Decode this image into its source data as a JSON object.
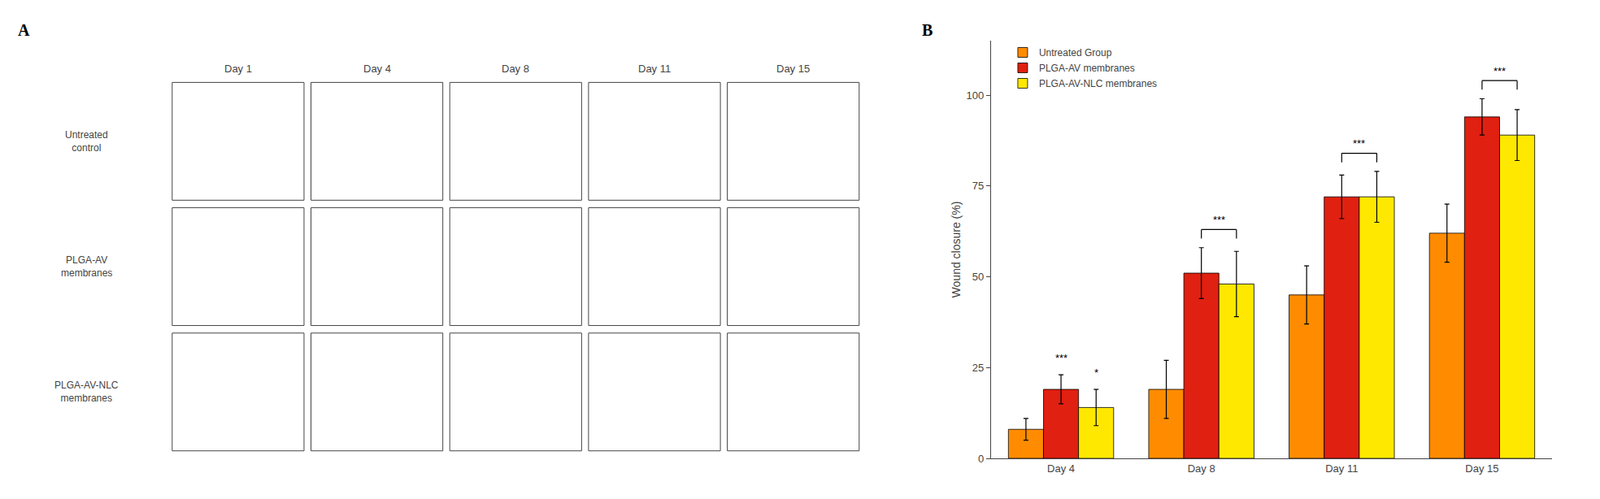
{
  "chart_data": [
    {
      "type": "photogrid",
      "title": "A",
      "categories": [
        "Day 1",
        "Day 4",
        "Day 8",
        "Day 11",
        "Day 15"
      ],
      "rows": [
        "Untreated\ncontrol",
        "PLGA-AV\nmembranes",
        "PLGA-AV-NLC\nmembranes"
      ]
    },
    {
      "type": "bar",
      "title": "B",
      "categories": [
        "Day 4",
        "Day 8",
        "Day 11",
        "Day 15"
      ],
      "series": [
        {
          "name": "Untreated Group",
          "color": "#FF8C00",
          "values": [
            8,
            19,
            45,
            62
          ],
          "errors": [
            3,
            8,
            8,
            8
          ]
        },
        {
          "name": "PLGA-AV membranes",
          "color": "#E02010",
          "values": [
            19,
            51,
            72,
            94
          ],
          "errors": [
            4,
            7,
            6,
            5
          ]
        },
        {
          "name": "PLGA-AV-NLC membranes",
          "color": "#FFE800",
          "values": [
            14,
            48,
            72,
            89
          ],
          "errors": [
            5,
            9,
            7,
            7
          ]
        }
      ],
      "ylabel": "Wound closure (%)",
      "ylim": [
        0,
        115
      ],
      "yticks": [
        0,
        25,
        50,
        75,
        100
      ],
      "grid": false,
      "legend": "upper left",
      "annotations": [
        {
          "text": "***",
          "category": "Day 4",
          "series": [
            "PLGA-AV membranes"
          ]
        },
        {
          "text": "*",
          "category": "Day 4",
          "series": [
            "PLGA-AV-NLC membranes"
          ]
        },
        {
          "text": "***",
          "category": "Day 8",
          "series": [
            "PLGA-AV membranes",
            "PLGA-AV-NLC membranes"
          ]
        },
        {
          "text": "***",
          "category": "Day 11",
          "series": [
            "PLGA-AV membranes",
            "PLGA-AV-NLC membranes"
          ]
        },
        {
          "text": "***",
          "category": "Day 15",
          "series": [
            "PLGA-AV membranes",
            "PLGA-AV-NLC membranes"
          ]
        }
      ]
    }
  ]
}
